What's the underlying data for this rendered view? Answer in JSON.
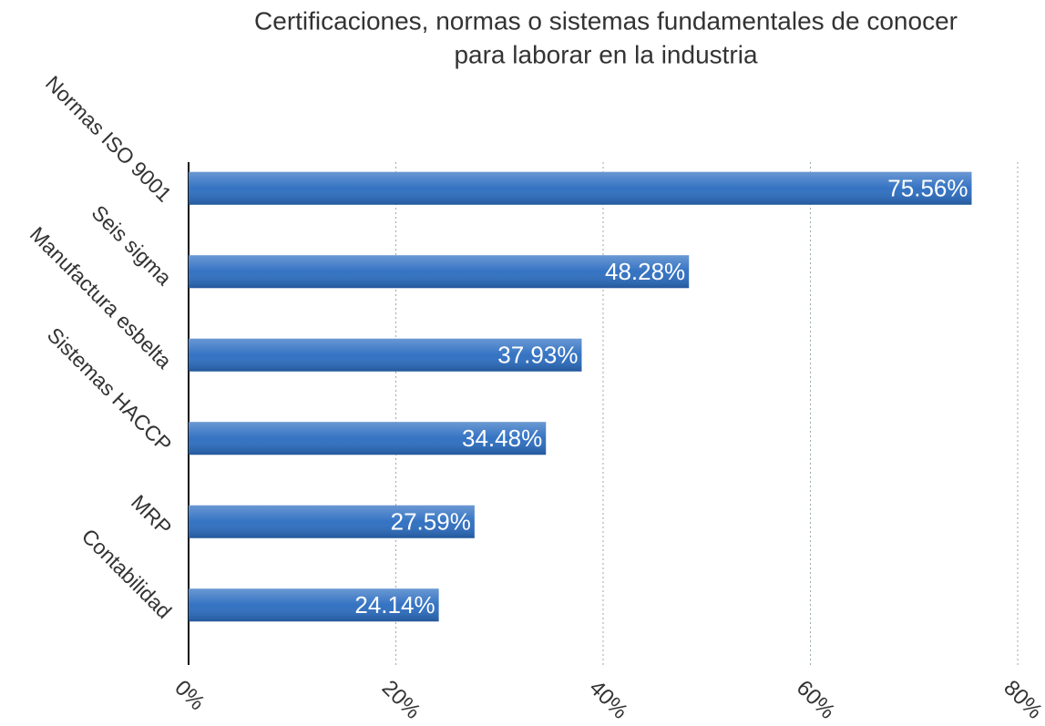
{
  "chart_data": {
    "type": "bar",
    "orientation": "horizontal",
    "title": [
      "Certificaciones, normas o sistemas fundamentales de conocer",
      "para laborar en la industria"
    ],
    "categories": [
      "Normas ISO 9001",
      "Seis sigma",
      "Manufactura esbelta",
      "Sistemas HACCP",
      "MRP",
      "Contabilidad"
    ],
    "values": [
      75.56,
      48.28,
      37.93,
      34.48,
      27.59,
      24.14
    ],
    "value_labels": [
      "75.56%",
      "48.28%",
      "37.93%",
      "34.48%",
      "27.59%",
      "24.14%"
    ],
    "color": "#2a6cc0",
    "xlim": [
      0,
      80
    ],
    "xticks": [
      {
        "value": 0,
        "label": "0%"
      },
      {
        "value": 20,
        "label": "20%"
      },
      {
        "value": 40,
        "label": "40%"
      },
      {
        "value": 60,
        "label": "60%"
      },
      {
        "value": 80,
        "label": "80%"
      }
    ],
    "grid": true
  }
}
